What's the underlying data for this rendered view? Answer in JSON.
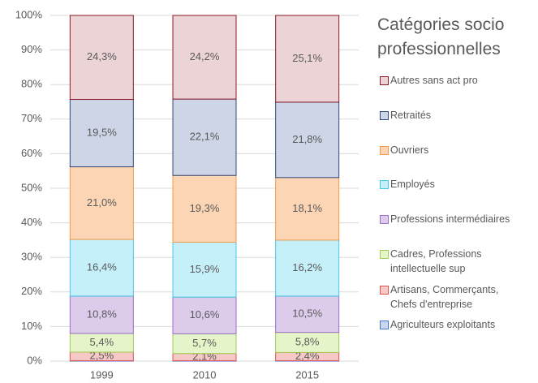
{
  "chart_data": {
    "type": "stacked_bar",
    "legend_title": "Catégories socio professionnelles",
    "legend": "right",
    "grid": true,
    "categories": [
      "1999",
      "2010",
      "2015"
    ],
    "ylim": [
      0,
      100
    ],
    "yticks": [
      {
        "value": 0,
        "label": "0%"
      },
      {
        "value": 10,
        "label": "10%"
      },
      {
        "value": 20,
        "label": "20%"
      },
      {
        "value": 30,
        "label": "30%"
      },
      {
        "value": 40,
        "label": "40%"
      },
      {
        "value": 50,
        "label": "50%"
      },
      {
        "value": 60,
        "label": "60%"
      },
      {
        "value": 70,
        "label": "70%"
      },
      {
        "value": 80,
        "label": "80%"
      },
      {
        "value": 90,
        "label": "90%"
      },
      {
        "value": 100,
        "label": "100%"
      }
    ],
    "series": [
      {
        "name": "Agriculteurs exploitants",
        "color": "#c9d6ef",
        "border": "#4a74c4",
        "values": [
          0.1,
          0.1,
          0.1
        ]
      },
      {
        "name": "Artisans, Commerçants, Chefs d'entreprise",
        "color": "#f6c9c7",
        "border": "#e05050",
        "values": [
          2.5,
          2.1,
          2.4
        ],
        "value_labels": [
          "2,5%",
          "2,1%",
          "2,4%"
        ]
      },
      {
        "name": "Cadres, Professions intellectuelle sup",
        "color": "#e6f5c9",
        "border": "#9fcf5a",
        "values": [
          5.4,
          5.7,
          5.8
        ],
        "value_labels": [
          "5,4%",
          "5,7%",
          "5,8%"
        ]
      },
      {
        "name": "Professions intermédiaires",
        "color": "#dccbea",
        "border": "#9b6fc4",
        "values": [
          10.8,
          10.6,
          10.5
        ],
        "value_labels": [
          "10,8%",
          "10,6%",
          "10,5%"
        ]
      },
      {
        "name": "Employés",
        "color": "#c5f0fa",
        "border": "#47c7e6",
        "values": [
          16.4,
          15.9,
          16.2
        ],
        "value_labels": [
          "16,4%",
          "15,9%",
          "16,2%"
        ]
      },
      {
        "name": "Ouvriers",
        "color": "#fcd5b4",
        "border": "#f59a4a",
        "values": [
          21.0,
          19.3,
          18.1
        ],
        "value_labels": [
          "21,0%",
          "19,3%",
          "18,1%"
        ]
      },
      {
        "name": "Retraités",
        "color": "#cdd5e6",
        "border": "#2f4a7a",
        "values": [
          19.5,
          22.1,
          21.8
        ],
        "value_labels": [
          "19,5%",
          "22,1%",
          "21,8%"
        ]
      },
      {
        "name": "Autres sans act pro",
        "color": "#ebd3d6",
        "border": "#8b1a2a",
        "values": [
          24.3,
          24.2,
          25.1
        ],
        "value_labels": [
          "24,3%",
          "24,2%",
          "25,1%"
        ]
      }
    ]
  }
}
